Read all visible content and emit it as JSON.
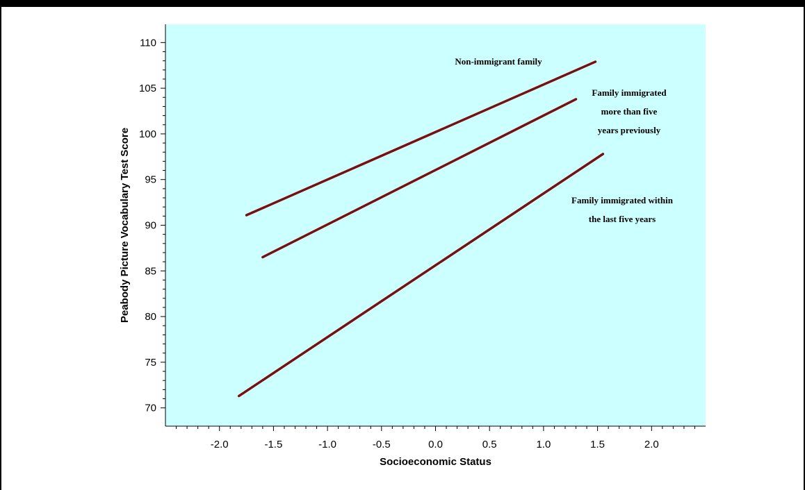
{
  "chart_data": {
    "type": "line",
    "title": "",
    "xlabel": "Socioeconomic Status",
    "ylabel": "Peabody Picture Vocabulary Test Score",
    "xlim": [
      -2.5,
      2.5
    ],
    "ylim": [
      68,
      112
    ],
    "x_ticks": [
      "-2.0",
      "-1.5",
      "-1.0",
      "-0.5",
      "0.0",
      "0.5",
      "1.0",
      "1.5",
      "2.0"
    ],
    "y_ticks": [
      "70",
      "75",
      "80",
      "85",
      "90",
      "95",
      "100",
      "105",
      "110"
    ],
    "plot_background": "#ccffff",
    "line_color": "#7a0f0f",
    "grid": false,
    "series": [
      {
        "label_lines": [
          "Non-immigrant family"
        ],
        "x": [
          -1.75,
          1.48
        ],
        "y": [
          91.1,
          107.9
        ]
      },
      {
        "label_lines": [
          "Family immigrated",
          "more than five",
          "years previously"
        ],
        "x": [
          -1.6,
          1.3
        ],
        "y": [
          86.5,
          103.8
        ]
      },
      {
        "label_lines": [
          "Family immigrated within",
          "the last five years"
        ],
        "x": [
          -1.82,
          1.55
        ],
        "y": [
          71.3,
          97.8
        ]
      }
    ]
  }
}
